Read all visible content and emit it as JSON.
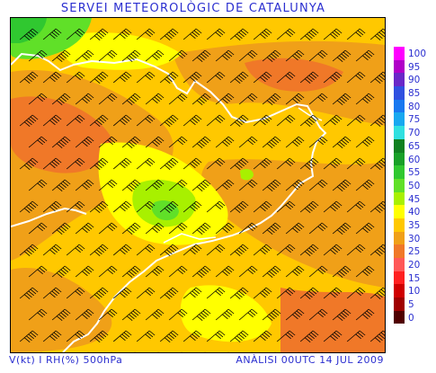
{
  "header": {
    "title": "SERVEI METEOROLÒGIC DE CATALUNYA"
  },
  "footer": {
    "variable": "V(kt) I RH(%) 500hPa",
    "analysis": "ANÀLISI 00UTC 14 JUL 2009"
  },
  "legend": {
    "entries": [
      {
        "label": "100",
        "color": "#ff00ff"
      },
      {
        "label": "95",
        "color": "#b000c8"
      },
      {
        "label": "90",
        "color": "#6a28c8"
      },
      {
        "label": "85",
        "color": "#3050e0"
      },
      {
        "label": "80",
        "color": "#1878f0"
      },
      {
        "label": "75",
        "color": "#18a8f0"
      },
      {
        "label": "70",
        "color": "#30e0e0"
      },
      {
        "label": "65",
        "color": "#108020"
      },
      {
        "label": "60",
        "color": "#18a028"
      },
      {
        "label": "55",
        "color": "#30c830"
      },
      {
        "label": "50",
        "color": "#60e028"
      },
      {
        "label": "45",
        "color": "#a8f000"
      },
      {
        "label": "40",
        "color": "#ffff00"
      },
      {
        "label": "35",
        "color": "#ffc800"
      },
      {
        "label": "30",
        "color": "#f0a018"
      },
      {
        "label": "25",
        "color": "#f07828"
      },
      {
        "label": "20",
        "color": "#ff5858"
      },
      {
        "label": "15",
        "color": "#ff2020"
      },
      {
        "label": "10",
        "color": "#d00000"
      },
      {
        "label": "5",
        "color": "#a00000"
      },
      {
        "label": "0",
        "color": "#500000"
      }
    ]
  }
}
